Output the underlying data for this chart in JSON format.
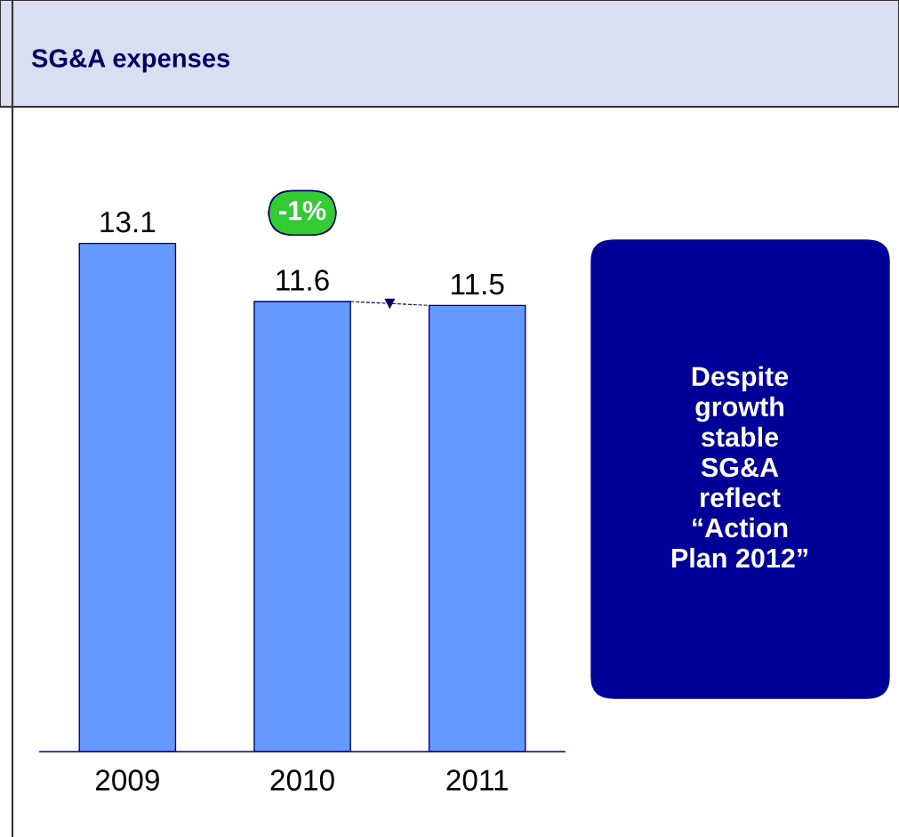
{
  "chart_data": {
    "type": "bar",
    "title": "SG&A expenses",
    "categories": [
      "2009",
      "2010",
      "2011"
    ],
    "values": [
      13.1,
      11.6,
      11.5
    ],
    "color": "#6699ff",
    "data_labels": true,
    "annotations": [
      "-1%",
      "Despite\ngrowth\nstable\nSG&A\nreflect\n“Action\nPlan 2012”"
    ]
  }
}
